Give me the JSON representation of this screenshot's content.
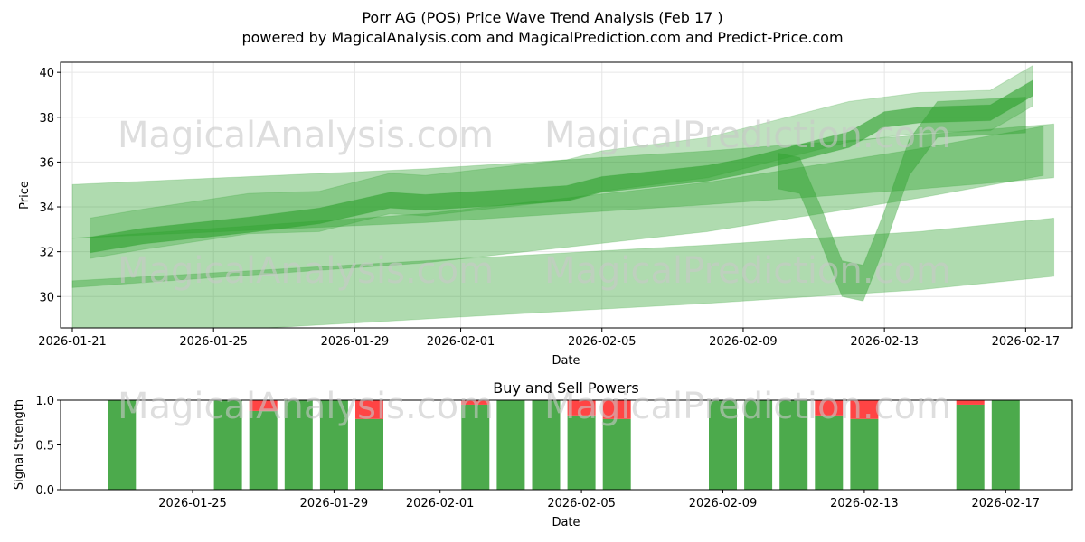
{
  "title_line1": "Porr AG (POS) Price Wave Trend Analysis (Feb 17 )",
  "title_line2": "powered by MagicalAnalysis.com and MagicalPrediction.com and Predict-Price.com",
  "watermarks": [
    "MagicalAnalysis.com",
    "MagicalPrediction.com"
  ],
  "colors": {
    "band": "#2ca02c",
    "buy": "#4caa4c",
    "sell": "#ff4444"
  },
  "chart_data": [
    {
      "type": "area",
      "title": "",
      "xlabel": "Date",
      "ylabel": "Price",
      "ylim": [
        28.6,
        40.45
      ],
      "xlim_days_from_start": [
        -0.35,
        28.1
      ],
      "start_date": "2026-01-21",
      "x_ticks": [
        {
          "day": 0,
          "label": "2026-01-21"
        },
        {
          "day": 4,
          "label": "2026-01-25"
        },
        {
          "day": 8,
          "label": "2026-01-29"
        },
        {
          "day": 11,
          "label": "2026-02-01"
        },
        {
          "day": 15,
          "label": "2026-02-05"
        },
        {
          "day": 19,
          "label": "2026-02-09"
        },
        {
          "day": 23,
          "label": "2026-02-13"
        },
        {
          "day": 27,
          "label": "2026-02-17"
        }
      ],
      "y_ticks": [
        30,
        32,
        34,
        36,
        38,
        40
      ],
      "series": [
        {
          "name": "upper wave band",
          "x": [
            0,
            10,
            18,
            24,
            27.8
          ],
          "center": [
            33.8,
            34.5,
            35.3,
            36.0,
            36.5
          ],
          "half_width": 1.2,
          "opacity": 0.38
        },
        {
          "name": "lower wave band",
          "x": [
            0,
            10,
            18,
            24,
            27.8
          ],
          "center": [
            29.4,
            30.3,
            31.0,
            31.6,
            32.2
          ],
          "half_width": 1.3,
          "opacity": 0.38
        },
        {
          "name": "middle wave band",
          "x": [
            0,
            10,
            18,
            24,
            27.5
          ],
          "center": [
            31.5,
            32.6,
            34.0,
            35.5,
            36.5
          ],
          "half_width": 1.1,
          "opacity": 0.38
        },
        {
          "name": "dip wave band",
          "x": [
            20,
            20.6,
            21.2,
            21.8,
            22.4,
            23,
            23.7,
            24.5,
            27
          ],
          "center": [
            35.6,
            35.4,
            33.2,
            30.8,
            30.6,
            33.0,
            36.2,
            37.9,
            38.1
          ],
          "half_width": 0.8,
          "opacity": 0.45
        },
        {
          "name": "trend band wide",
          "x": [
            0.5,
            2,
            5,
            7,
            9,
            10,
            14,
            15,
            18,
            19,
            22,
            23,
            24,
            26,
            27.2
          ],
          "center": [
            32.6,
            33.0,
            33.7,
            33.8,
            34.6,
            34.5,
            35.2,
            35.6,
            36.2,
            36.6,
            37.8,
            38.0,
            38.2,
            38.3,
            39.4
          ],
          "half_width": 0.9,
          "opacity": 0.3
        },
        {
          "name": "trend band core",
          "x": [
            0.5,
            2,
            5,
            7,
            9,
            10,
            14,
            15,
            18,
            19,
            22,
            23,
            24,
            26,
            27.2
          ],
          "center": [
            32.3,
            32.7,
            33.2,
            33.6,
            34.3,
            34.2,
            34.6,
            35.0,
            35.5,
            35.8,
            37.0,
            37.9,
            38.1,
            38.2,
            39.3
          ],
          "half_width": 0.35,
          "opacity": 0.6
        }
      ]
    },
    {
      "type": "bar",
      "title": "Buy and Sell Powers",
      "xlabel": "Date",
      "ylabel": "Signal Strength",
      "ylim": [
        0,
        1
      ],
      "y_ticks": [
        "0.0",
        "0.5",
        "1.0"
      ],
      "x_ticks": [
        {
          "day": 4,
          "label": "2026-01-25"
        },
        {
          "day": 8,
          "label": "2026-01-29"
        },
        {
          "day": 11,
          "label": "2026-02-01"
        },
        {
          "day": 15,
          "label": "2026-02-05"
        },
        {
          "day": 19,
          "label": "2026-02-09"
        },
        {
          "day": 23,
          "label": "2026-02-13"
        },
        {
          "day": 27,
          "label": "2026-02-17"
        }
      ],
      "days": [
        2,
        5,
        6,
        7,
        8,
        9,
        12,
        13,
        14,
        15,
        16,
        19,
        20,
        21,
        22,
        23,
        26,
        27
      ],
      "buy": [
        1,
        1,
        0.88,
        1,
        1,
        0.79,
        0.95,
        1,
        1,
        0.83,
        0.79,
        1,
        1,
        1,
        0.83,
        0.79,
        0.95,
        1
      ],
      "sell": [
        0,
        0,
        0.12,
        0,
        0,
        0.21,
        0.05,
        0,
        0,
        0.17,
        0.21,
        0,
        0,
        0,
        0.17,
        0.21,
        0.05,
        0
      ]
    }
  ]
}
